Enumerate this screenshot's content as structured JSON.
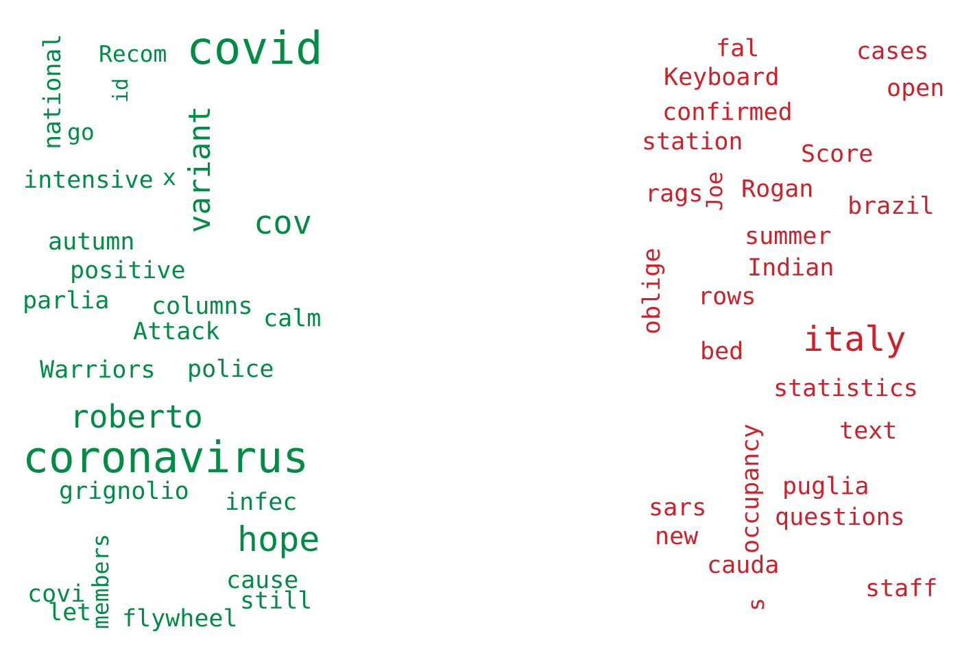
{
  "clouds": [
    {
      "color": "#008c45",
      "words": [
        {
          "text": "covid",
          "vertical": false
        },
        {
          "text": "Recom",
          "vertical": false
        },
        {
          "text": "national",
          "vertical": true
        },
        {
          "text": "id",
          "vertical": true
        },
        {
          "text": "go",
          "vertical": false
        },
        {
          "text": "variant",
          "vertical": true
        },
        {
          "text": "intensive",
          "vertical": false
        },
        {
          "text": "x",
          "vertical": false
        },
        {
          "text": "cov",
          "vertical": false
        },
        {
          "text": "autumn",
          "vertical": false
        },
        {
          "text": "positive",
          "vertical": false
        },
        {
          "text": "parlia",
          "vertical": false
        },
        {
          "text": "columns",
          "vertical": false
        },
        {
          "text": "calm",
          "vertical": false
        },
        {
          "text": "Attack",
          "vertical": false
        },
        {
          "text": "Warriors",
          "vertical": false
        },
        {
          "text": "police",
          "vertical": false
        },
        {
          "text": "roberto",
          "vertical": false
        },
        {
          "text": "coronavirus",
          "vertical": false
        },
        {
          "text": "grignolio",
          "vertical": false
        },
        {
          "text": "infec",
          "vertical": false
        },
        {
          "text": "hope",
          "vertical": false
        },
        {
          "text": "members",
          "vertical": true
        },
        {
          "text": "covi",
          "vertical": false
        },
        {
          "text": "let",
          "vertical": false
        },
        {
          "text": "cause",
          "vertical": false
        },
        {
          "text": "still",
          "vertical": false
        },
        {
          "text": "flywheel",
          "vertical": false
        }
      ]
    },
    {
      "color": "#cd212a",
      "words": [
        {
          "text": "fal",
          "vertical": false
        },
        {
          "text": "cases",
          "vertical": false
        },
        {
          "text": "Keyboard",
          "vertical": false
        },
        {
          "text": "open",
          "vertical": false
        },
        {
          "text": "confirmed",
          "vertical": false
        },
        {
          "text": "station",
          "vertical": false
        },
        {
          "text": "Score",
          "vertical": false
        },
        {
          "text": "rags",
          "vertical": false
        },
        {
          "text": "Joe",
          "vertical": true
        },
        {
          "text": "Rogan",
          "vertical": false
        },
        {
          "text": "brazil",
          "vertical": false
        },
        {
          "text": "summer",
          "vertical": false
        },
        {
          "text": "oblige",
          "vertical": true
        },
        {
          "text": "Indian",
          "vertical": false
        },
        {
          "text": "rows",
          "vertical": false
        },
        {
          "text": "italy",
          "vertical": false
        },
        {
          "text": "bed",
          "vertical": false
        },
        {
          "text": "statistics",
          "vertical": false
        },
        {
          "text": "occupancy",
          "vertical": true
        },
        {
          "text": "text",
          "vertical": false
        },
        {
          "text": "puglia",
          "vertical": false
        },
        {
          "text": "sars",
          "vertical": false
        },
        {
          "text": "questions",
          "vertical": false
        },
        {
          "text": "new",
          "vertical": false
        },
        {
          "text": "cauda",
          "vertical": false
        },
        {
          "text": "staff",
          "vertical": false
        },
        {
          "text": "s",
          "vertical": true
        }
      ]
    }
  ]
}
